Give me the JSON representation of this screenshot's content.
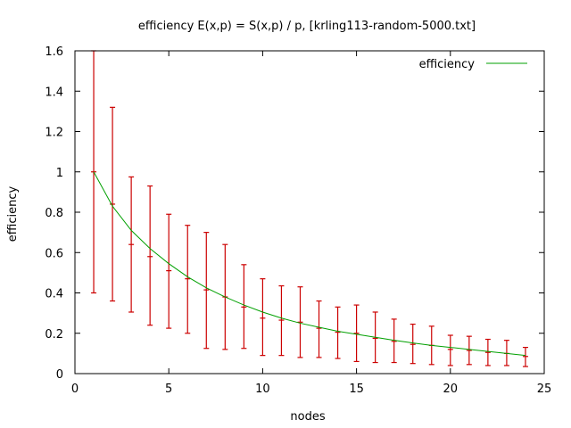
{
  "chart_data": {
    "type": "line",
    "title": "efficiency E(x,p) = S(x,p) / p, [krling113-random-5000.txt]",
    "xlabel": "nodes",
    "ylabel": "efficiency",
    "xlim": [
      0,
      25
    ],
    "ylim": [
      0,
      1.6
    ],
    "xticks": [
      0,
      5,
      10,
      15,
      20,
      25
    ],
    "yticks": [
      0,
      0.2,
      0.4,
      0.6,
      0.8,
      1,
      1.2,
      1.4,
      1.6
    ],
    "xtick_labels": [
      "0",
      "5",
      "10",
      "15",
      "20",
      "25"
    ],
    "ytick_labels": [
      "0",
      "0.2",
      "0.4",
      "0.6",
      "0.8",
      "1",
      "1.2",
      "1.4",
      "1.6"
    ],
    "grid": false,
    "legend_position": "top-right",
    "series": [
      {
        "name": "efficiency",
        "color": "#00a000",
        "errorbar_color": "#cc0000",
        "x": [
          1,
          2,
          3,
          4,
          5,
          6,
          7,
          8,
          9,
          10,
          11,
          12,
          13,
          14,
          15,
          16,
          17,
          18,
          19,
          20,
          21,
          22,
          23,
          24
        ],
        "y": [
          1.0,
          0.84,
          0.64,
          0.58,
          0.51,
          0.47,
          0.415,
          0.38,
          0.33,
          0.275,
          0.265,
          0.255,
          0.225,
          0.205,
          0.2,
          0.175,
          0.16,
          0.145,
          0.14,
          0.12,
          0.115,
          0.105,
          0.1,
          0.085
        ],
        "y_low": [
          0.4,
          0.36,
          0.305,
          0.24,
          0.225,
          0.2,
          0.125,
          0.12,
          0.125,
          0.09,
          0.09,
          0.08,
          0.08,
          0.075,
          0.06,
          0.055,
          0.055,
          0.05,
          0.045,
          0.04,
          0.045,
          0.04,
          0.04,
          0.035
        ],
        "y_high": [
          1.6,
          1.32,
          0.975,
          0.93,
          0.79,
          0.735,
          0.7,
          0.64,
          0.54,
          0.47,
          0.435,
          0.43,
          0.36,
          0.33,
          0.34,
          0.305,
          0.27,
          0.245,
          0.235,
          0.19,
          0.185,
          0.17,
          0.165,
          0.13
        ],
        "curve": [
          1.0,
          0.83,
          0.71,
          0.62,
          0.545,
          0.48,
          0.425,
          0.38,
          0.34,
          0.305,
          0.275,
          0.25,
          0.23,
          0.21,
          0.195,
          0.18,
          0.165,
          0.152,
          0.14,
          0.13,
          0.12,
          0.11,
          0.1,
          0.09
        ]
      }
    ]
  }
}
